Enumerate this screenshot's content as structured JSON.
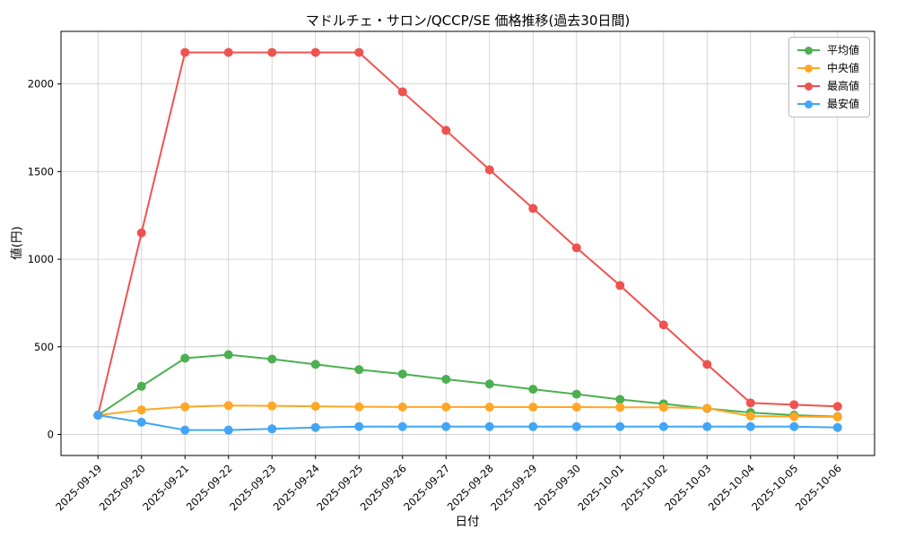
{
  "chart_data": {
    "type": "line",
    "title": "マドルチェ・サロン/QCCP/SE 価格推移(過去30日間)",
    "xlabel": "日付",
    "ylabel": "値(円)",
    "categories": [
      "2025-09-19",
      "2025-09-20",
      "2025-09-21",
      "2025-09-22",
      "2025-09-23",
      "2025-09-24",
      "2025-09-25",
      "2025-09-26",
      "2025-09-27",
      "2025-09-28",
      "2025-09-29",
      "2025-09-30",
      "2025-10-01",
      "2025-10-02",
      "2025-10-03",
      "2025-10-04",
      "2025-10-05",
      "2025-10-06"
    ],
    "series": [
      {
        "name": "平均値",
        "color": "#4caf50",
        "values": [
          110,
          275,
          435,
          455,
          430,
          400,
          370,
          345,
          315,
          288,
          258,
          230,
          200,
          175,
          148,
          125,
          110,
          102
        ]
      },
      {
        "name": "中央値",
        "color": "#ffa726",
        "values": [
          110,
          140,
          158,
          165,
          163,
          161,
          158,
          157,
          157,
          156,
          156,
          156,
          155,
          155,
          150,
          105,
          102,
          100
        ]
      },
      {
        "name": "最高値",
        "color": "#ef5350",
        "values": [
          110,
          1150,
          2180,
          2180,
          2180,
          2180,
          2180,
          1955,
          1735,
          1510,
          1290,
          1065,
          850,
          625,
          400,
          180,
          170,
          160
        ]
      },
      {
        "name": "最安値",
        "color": "#42a5f5",
        "values": [
          110,
          70,
          25,
          25,
          32,
          40,
          45,
          45,
          45,
          45,
          45,
          45,
          45,
          45,
          45,
          45,
          45,
          40
        ]
      }
    ],
    "yticks": [
      0,
      500,
      1000,
      1500,
      2000
    ],
    "ylim": [
      -120,
      2300
    ],
    "grid": true,
    "grid_color": "#cccccc",
    "background": "#ffffff",
    "legend_position": "upper right"
  }
}
